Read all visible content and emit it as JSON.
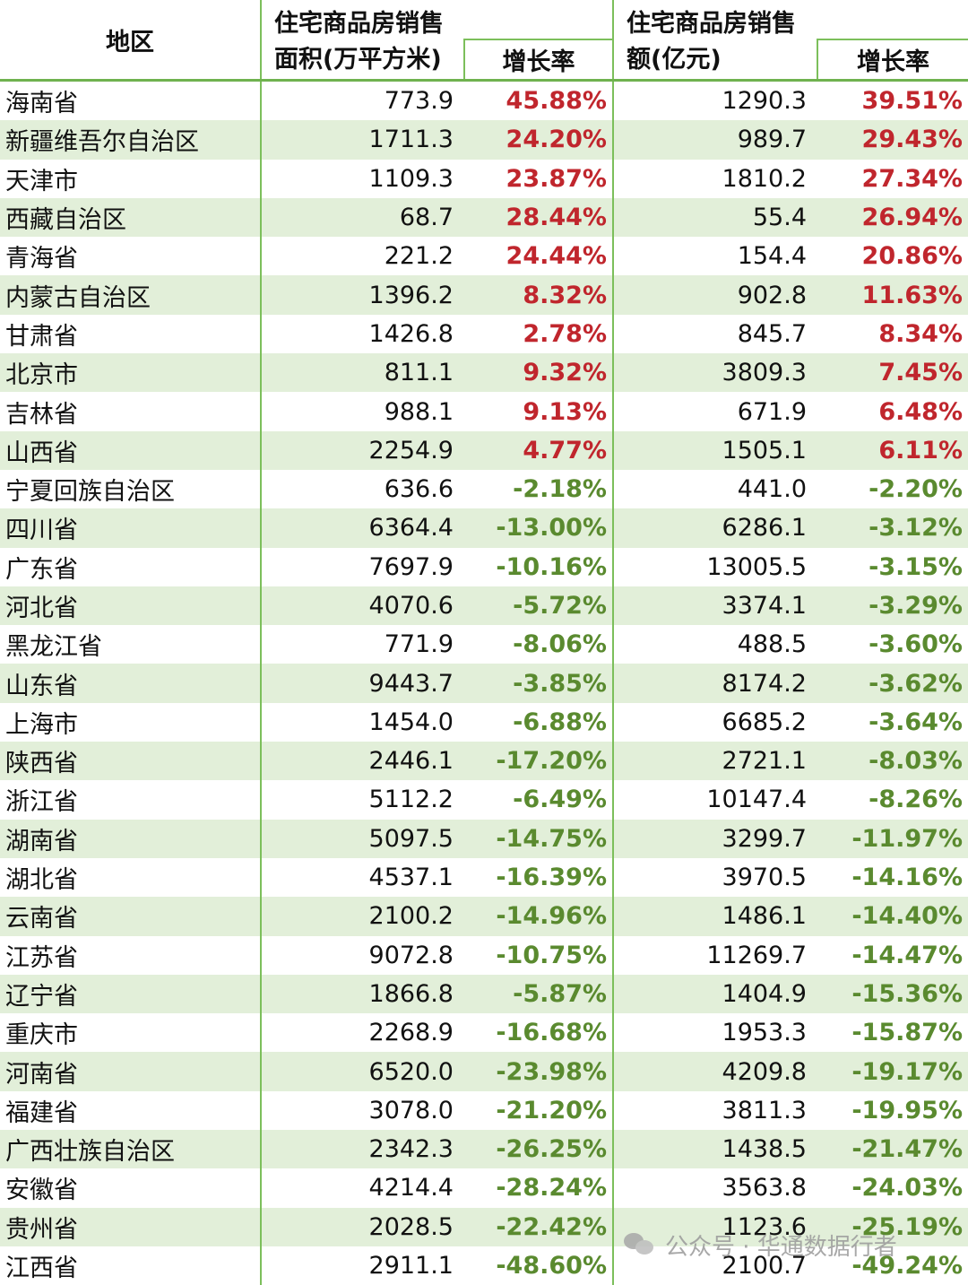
{
  "header": {
    "region": "地区",
    "area_title_line1": "住宅商品房销售",
    "area_title_line2": "面积(万平方米)",
    "amount_title_line1": "住宅商品房销售",
    "amount_title_line2": "额(亿元)",
    "area_growth": "增长率",
    "amount_growth": "增长率"
  },
  "rows": [
    {
      "region": "海南省",
      "area": "773.9",
      "area_growth": "45.88%",
      "amount": "1290.3",
      "amount_growth": "39.51%"
    },
    {
      "region": "新疆维吾尔自治区",
      "area": "1711.3",
      "area_growth": "24.20%",
      "amount": "989.7",
      "amount_growth": "29.43%"
    },
    {
      "region": "天津市",
      "area": "1109.3",
      "area_growth": "23.87%",
      "amount": "1810.2",
      "amount_growth": "27.34%"
    },
    {
      "region": "西藏自治区",
      "area": "68.7",
      "area_growth": "28.44%",
      "amount": "55.4",
      "amount_growth": "26.94%"
    },
    {
      "region": "青海省",
      "area": "221.2",
      "area_growth": "24.44%",
      "amount": "154.4",
      "amount_growth": "20.86%"
    },
    {
      "region": "内蒙古自治区",
      "area": "1396.2",
      "area_growth": "8.32%",
      "amount": "902.8",
      "amount_growth": "11.63%"
    },
    {
      "region": "甘肃省",
      "area": "1426.8",
      "area_growth": "2.78%",
      "amount": "845.7",
      "amount_growth": "8.34%"
    },
    {
      "region": "北京市",
      "area": "811.1",
      "area_growth": "9.32%",
      "amount": "3809.3",
      "amount_growth": "7.45%"
    },
    {
      "region": "吉林省",
      "area": "988.1",
      "area_growth": "9.13%",
      "amount": "671.9",
      "amount_growth": "6.48%"
    },
    {
      "region": "山西省",
      "area": "2254.9",
      "area_growth": "4.77%",
      "amount": "1505.1",
      "amount_growth": "6.11%"
    },
    {
      "region": "宁夏回族自治区",
      "area": "636.6",
      "area_growth": "-2.18%",
      "amount": "441.0",
      "amount_growth": "-2.20%"
    },
    {
      "region": "四川省",
      "area": "6364.4",
      "area_growth": "-13.00%",
      "amount": "6286.1",
      "amount_growth": "-3.12%"
    },
    {
      "region": "广东省",
      "area": "7697.9",
      "area_growth": "-10.16%",
      "amount": "13005.5",
      "amount_growth": "-3.15%"
    },
    {
      "region": "河北省",
      "area": "4070.6",
      "area_growth": "-5.72%",
      "amount": "3374.1",
      "amount_growth": "-3.29%"
    },
    {
      "region": "黑龙江省",
      "area": "771.9",
      "area_growth": "-8.06%",
      "amount": "488.5",
      "amount_growth": "-3.60%"
    },
    {
      "region": "山东省",
      "area": "9443.7",
      "area_growth": "-3.85%",
      "amount": "8174.2",
      "amount_growth": "-3.62%"
    },
    {
      "region": "上海市",
      "area": "1454.0",
      "area_growth": "-6.88%",
      "amount": "6685.2",
      "amount_growth": "-3.64%"
    },
    {
      "region": "陕西省",
      "area": "2446.1",
      "area_growth": "-17.20%",
      "amount": "2721.1",
      "amount_growth": "-8.03%"
    },
    {
      "region": "浙江省",
      "area": "5112.2",
      "area_growth": "-6.49%",
      "amount": "10147.4",
      "amount_growth": "-8.26%"
    },
    {
      "region": "湖南省",
      "area": "5097.5",
      "area_growth": "-14.75%",
      "amount": "3299.7",
      "amount_growth": "-11.97%"
    },
    {
      "region": "湖北省",
      "area": "4537.1",
      "area_growth": "-16.39%",
      "amount": "3970.5",
      "amount_growth": "-14.16%"
    },
    {
      "region": "云南省",
      "area": "2100.2",
      "area_growth": "-14.96%",
      "amount": "1486.1",
      "amount_growth": "-14.40%"
    },
    {
      "region": "江苏省",
      "area": "9072.8",
      "area_growth": "-10.75%",
      "amount": "11269.7",
      "amount_growth": "-14.47%"
    },
    {
      "region": "辽宁省",
      "area": "1866.8",
      "area_growth": "-5.87%",
      "amount": "1404.9",
      "amount_growth": "-15.36%"
    },
    {
      "region": "重庆市",
      "area": "2268.9",
      "area_growth": "-16.68%",
      "amount": "1953.3",
      "amount_growth": "-15.87%"
    },
    {
      "region": "河南省",
      "area": "6520.0",
      "area_growth": "-23.98%",
      "amount": "4209.8",
      "amount_growth": "-19.17%"
    },
    {
      "region": "福建省",
      "area": "3078.0",
      "area_growth": "-21.20%",
      "amount": "3811.3",
      "amount_growth": "-19.95%"
    },
    {
      "region": "广西壮族自治区",
      "area": "2342.3",
      "area_growth": "-26.25%",
      "amount": "1438.5",
      "amount_growth": "-21.47%"
    },
    {
      "region": "安徽省",
      "area": "4214.4",
      "area_growth": "-28.24%",
      "amount": "3563.8",
      "amount_growth": "-24.03%"
    },
    {
      "region": "贵州省",
      "area": "2028.5",
      "area_growth": "-22.42%",
      "amount": "1123.6",
      "amount_growth": "-25.19%"
    },
    {
      "region": "江西省",
      "area": "2911.1",
      "area_growth": "-48.60%",
      "amount": "2100.7",
      "amount_growth": "-49.24%"
    }
  ],
  "colors": {
    "positive": "#c0262d",
    "negative": "#5a8a2f",
    "stripe": "#e2efd9",
    "grid": "#7cbf5b"
  },
  "watermark": {
    "icon": "wechat-icon",
    "text": "公众号 · 华通数据行者"
  }
}
